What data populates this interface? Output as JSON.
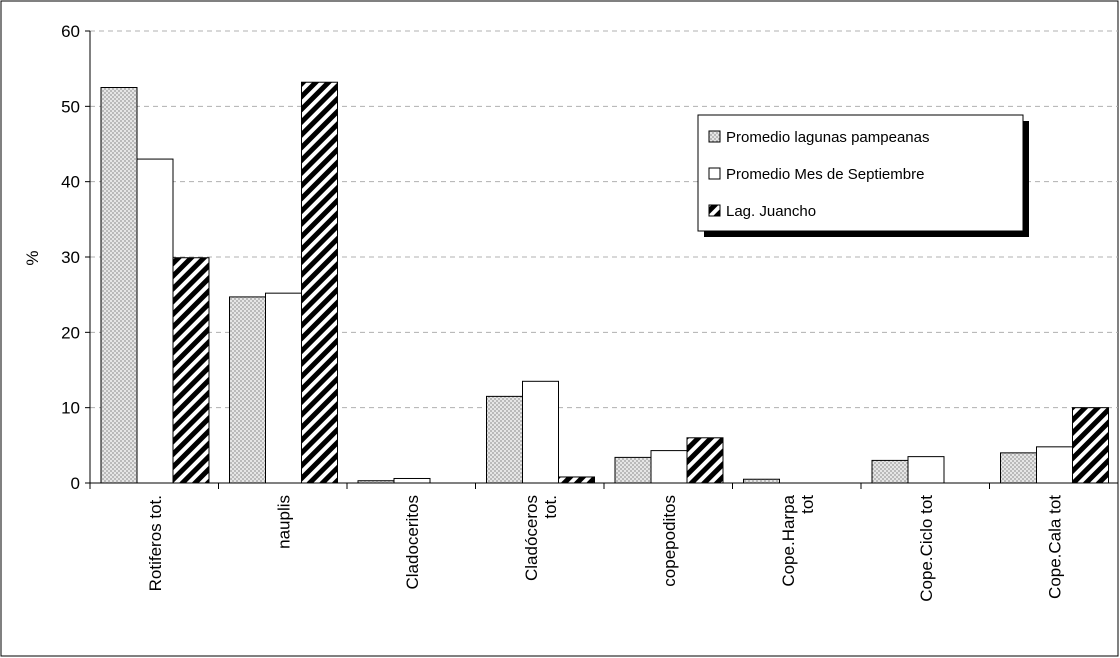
{
  "chart_data": {
    "type": "bar",
    "ylabel": "%",
    "ylim": [
      0,
      60
    ],
    "yticks": [
      "0",
      "10",
      "20",
      "30",
      "40",
      "50",
      "60"
    ],
    "grid": true,
    "legend_position": "top-right",
    "categories": [
      [
        "Rotiferos tot."
      ],
      [
        "nauplis"
      ],
      [
        "Cladoceritos"
      ],
      [
        "Cladóceros",
        "tot."
      ],
      [
        "copepoditos"
      ],
      [
        "Cope.Harpa",
        "tot"
      ],
      [
        "Cope.Ciclo tot"
      ],
      [
        "Cope.Cala tot"
      ]
    ],
    "series": [
      {
        "name": "Promedio lagunas pampeanas",
        "pattern": "dots",
        "values": [
          52.5,
          24.7,
          0.3,
          11.5,
          3.4,
          0.5,
          3.0,
          4.0
        ]
      },
      {
        "name": "Promedio Mes de Septiembre",
        "pattern": "white",
        "values": [
          43.0,
          25.2,
          0.6,
          13.5,
          4.3,
          0,
          3.5,
          4.8
        ]
      },
      {
        "name": "Lag. Juancho",
        "pattern": "diagonal",
        "values": [
          29.9,
          53.2,
          0,
          0.8,
          6.0,
          0,
          0,
          10.0
        ]
      }
    ],
    "colors": {
      "dots": "#9a9a9a",
      "bar_fill": "#ffffff",
      "stroke": "#000000",
      "grid": "#b0b0b0"
    }
  }
}
